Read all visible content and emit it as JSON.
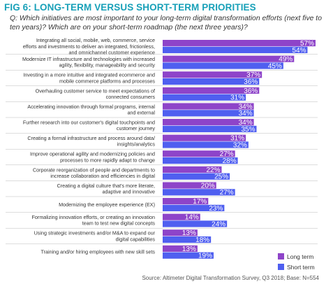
{
  "title": "FIG 6: LONG-TERM VERSUS SHORT-TERM PRIORITIES",
  "question": "Q: Which initiatives are most important to your long-term digital transformation efforts (next five to ten years)? Which are on your short-term roadmap (the next three years)?",
  "source": "Source: Altimeter Digital Transformation Survey, Q3 2018; Base: N=554",
  "colors": {
    "long_term": "#8e44c9",
    "short_term": "#4f5ff0",
    "title": "#17a0b8",
    "divider": "#bbbbbb"
  },
  "chart_data": {
    "type": "bar",
    "orientation": "horizontal",
    "categories": [
      [
        "Integrating all social, mobile, web, commerce, service",
        "efforts and investments to deliver an integrated, frictionless,",
        "and omnichannel customer experience"
      ],
      [
        "Modernize IT infrastructure and technologies with increased",
        "agility, flexibility, manageability and security"
      ],
      [
        "Investing in a more intuitive and integrated ecommerce and",
        "mobile commerce platforms and processes"
      ],
      [
        "Overhauling customer service to meet expectations of",
        "connected consumers"
      ],
      [
        "Accelerating innovation through formal programs, internal",
        "and external"
      ],
      [
        "Further research into our customer's digital touchpoints and",
        "customer journey"
      ],
      [
        "Creating a formal infrastructure and process around data/",
        "insights/analytics"
      ],
      [
        "Improve operational agility and modernizing policies and",
        "processes to more rapidly adapt to change"
      ],
      [
        "Corporate reorganization of people and departments to",
        "increase collaboration and efficiencies in digital"
      ],
      [
        "Creating a digital culture that's more literate,",
        "adaptive and innovative"
      ],
      [
        "Modernizing the employee experience (EX)"
      ],
      [
        "Formalizing innovation efforts, or creating an innovation",
        "team to test new digital concepts"
      ],
      [
        "Using strategic investments and/or M&A to expand our",
        "digital capabilities"
      ],
      [
        "Training and/or hiring employees with new skill sets"
      ]
    ],
    "series": [
      {
        "name": "Long term",
        "values": [
          57,
          49,
          37,
          36,
          34,
          34,
          31,
          27,
          22,
          20,
          17,
          14,
          13,
          13
        ]
      },
      {
        "name": "Short term",
        "values": [
          54,
          45,
          36,
          31,
          34,
          35,
          32,
          28,
          25,
          27,
          23,
          24,
          18,
          19
        ]
      }
    ],
    "value_suffix": "%",
    "xlim": [
      0,
      57
    ],
    "grid": false,
    "legend": "bottom-right"
  }
}
